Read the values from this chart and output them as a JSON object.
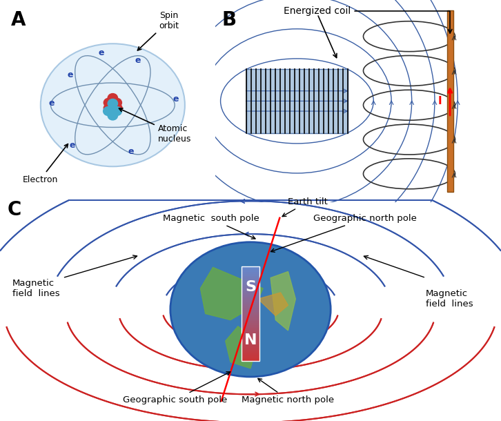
{
  "panel_A_label": "A",
  "panel_B_label": "B",
  "panel_C_label": "C",
  "panel_A_texts": {
    "spin_orbit": "Spin\norbit",
    "atomic_nucleus": "Atomic\nnucleus",
    "electron": "Electron"
  },
  "panel_B_texts": {
    "energized_coil": "Energized coil"
  },
  "panel_C_texts": {
    "magnetic_south_pole": "Magnetic  south pole",
    "earth_tilt": "Earth tilt",
    "geographic_north_pole": "Geographic north pole",
    "magnetic_field_lines_left": "Magnetic\nfield  lines",
    "magnetic_field_lines_right": "Magnetic\nfield  lines",
    "s_label": "S",
    "n_label": "N",
    "geographic_south_pole": "Geographic south pole",
    "magnetic_north_pole": "Magnetic north pole"
  },
  "colors": {
    "blue_field": "#3a5fa5",
    "light_blue": "#adc6e8",
    "red_field": "#cc2222",
    "orange_wire": "#c87028",
    "globe_blue": "#4477aa",
    "magnet_blue": "#6699cc",
    "magnet_red": "#cc3333",
    "electron_blue": "#4488cc",
    "proton_red": "#cc4444",
    "neutron_cyan": "#44aacc",
    "sphere_fill": "#d0e4f5",
    "sphere_edge": "#8ab4d8",
    "text_black": "#000000",
    "white": "#ffffff",
    "bg": "#ffffff"
  },
  "figsize": [
    7.26,
    6.1
  ],
  "dpi": 100
}
